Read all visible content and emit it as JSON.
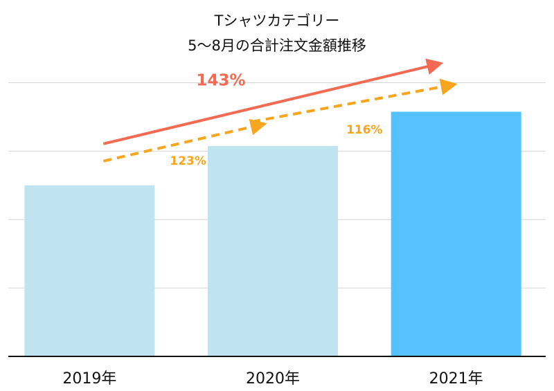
{
  "chart_data": {
    "type": "bar",
    "title_lines": [
      "Tシャツカテゴリー",
      "5〜8月の合計注文金額推移"
    ],
    "categories": [
      "2019年",
      "2020年",
      "2021年"
    ],
    "values": [
      100,
      123,
      143
    ],
    "ylim": [
      0,
      180
    ],
    "grid": true,
    "bar_colors": [
      "#bfe3f1",
      "#bfe3f1",
      "#56c1ff"
    ],
    "annotations": [
      {
        "label": "143%",
        "from": "2019年",
        "to": "2021年",
        "style": "solid",
        "color": "#f26a52"
      },
      {
        "label": "123%",
        "from": "2019年",
        "to": "2020年",
        "style": "dashed",
        "color": "#f7a51c"
      },
      {
        "label": "116%",
        "from": "2020年",
        "to": "2021年",
        "style": "dashed",
        "color": "#f7a51c"
      }
    ]
  }
}
